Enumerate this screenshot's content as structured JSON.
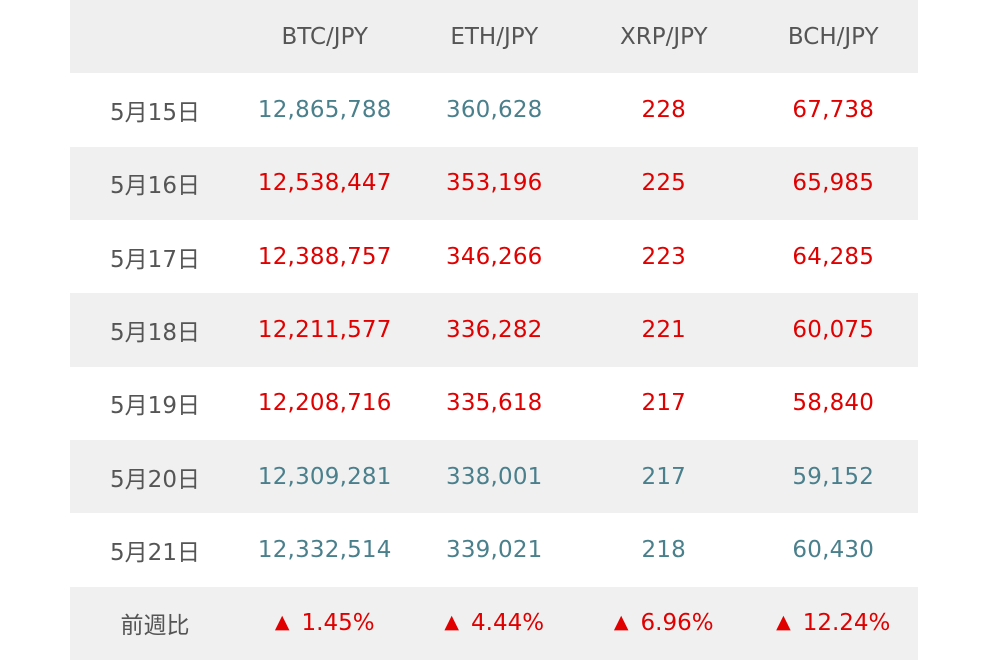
{
  "colors": {
    "up": "#4a7f8c",
    "down": "#e00000",
    "header_text": "#555555",
    "stripe_bg": "#f0f0f0"
  },
  "table": {
    "header": {
      "empty": "",
      "pairs": [
        "BTC/JPY",
        "ETH/JPY",
        "XRP/JPY",
        "BCH/JPY"
      ]
    },
    "rows": [
      {
        "date": "5月15日",
        "values": [
          "12,865,788",
          "360,628",
          "228",
          "67,738"
        ],
        "trend": [
          "up",
          "up",
          "down",
          "down"
        ]
      },
      {
        "date": "5月16日",
        "values": [
          "12,538,447",
          "353,196",
          "225",
          "65,985"
        ],
        "trend": [
          "down",
          "down",
          "down",
          "down"
        ]
      },
      {
        "date": "5月17日",
        "values": [
          "12,388,757",
          "346,266",
          "223",
          "64,285"
        ],
        "trend": [
          "down",
          "down",
          "down",
          "down"
        ]
      },
      {
        "date": "5月18日",
        "values": [
          "12,211,577",
          "336,282",
          "221",
          "60,075"
        ],
        "trend": [
          "down",
          "down",
          "down",
          "down"
        ]
      },
      {
        "date": "5月19日",
        "values": [
          "12,208,716",
          "335,618",
          "217",
          "58,840"
        ],
        "trend": [
          "down",
          "down",
          "down",
          "down"
        ]
      },
      {
        "date": "5月20日",
        "values": [
          "12,309,281",
          "338,001",
          "217",
          "59,152"
        ],
        "trend": [
          "up",
          "up",
          "up",
          "up"
        ]
      },
      {
        "date": "5月21日",
        "values": [
          "12,332,514",
          "339,021",
          "218",
          "60,430"
        ],
        "trend": [
          "up",
          "up",
          "up",
          "up"
        ]
      }
    ],
    "footer": {
      "label": "前週比",
      "icon": "triangle-up-icon",
      "triangle": "▲",
      "changes": [
        "1.45%",
        "4.44%",
        "6.96%",
        "12.24%"
      ]
    }
  }
}
